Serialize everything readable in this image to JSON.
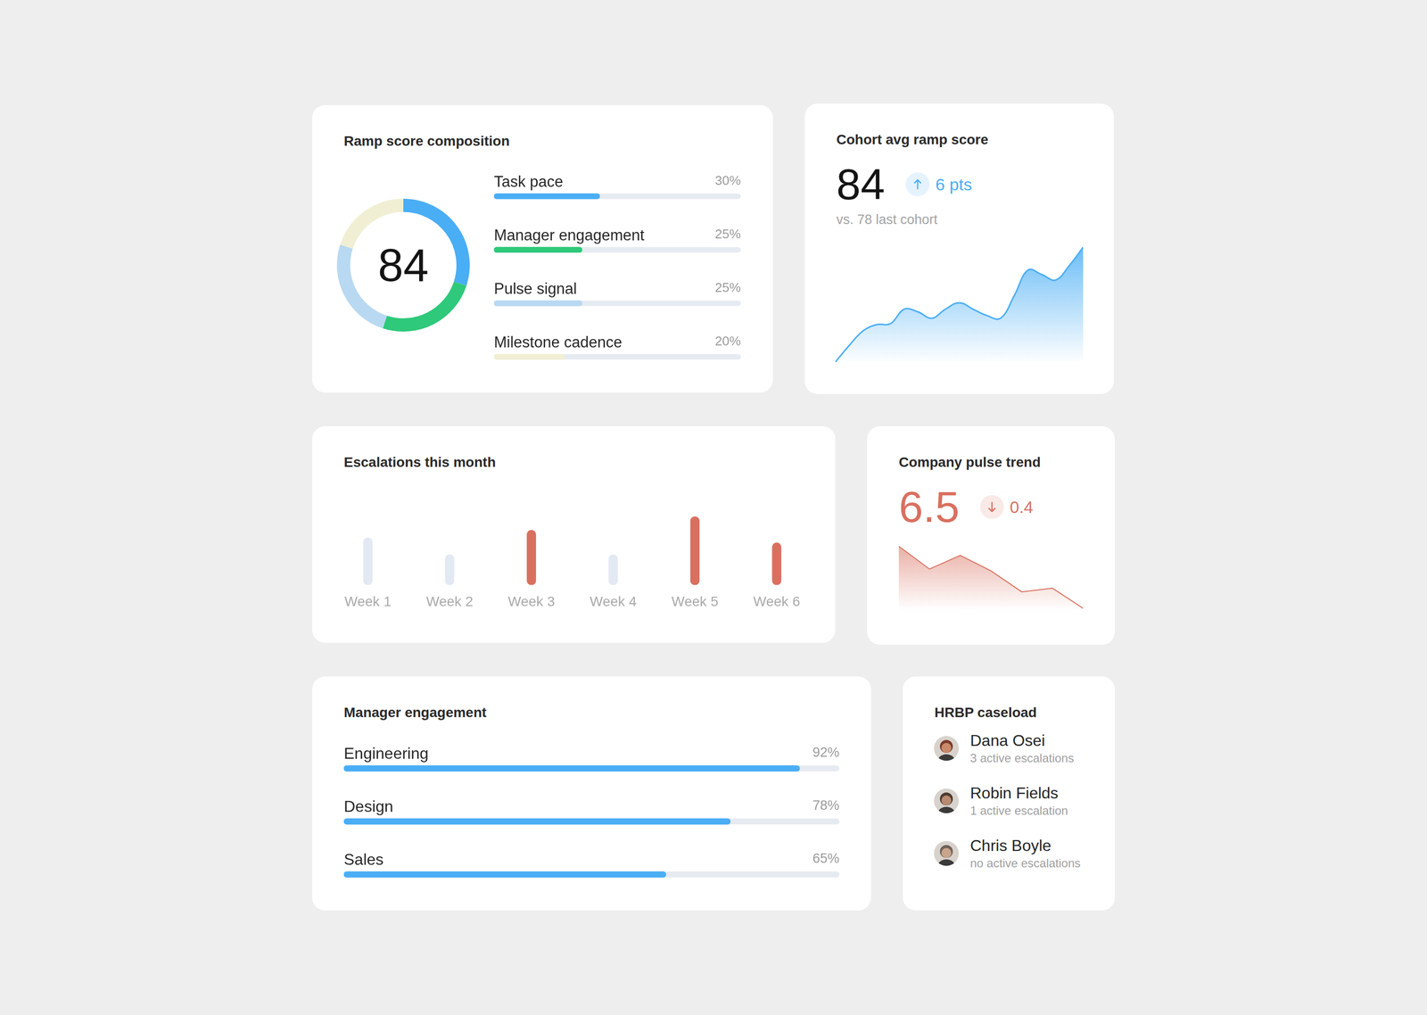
{
  "chart_data": [
    {
      "type": "doughnut",
      "title": "Ramp score composition",
      "center_value": 84,
      "categories": [
        "Task pace",
        "Manager engagement",
        "Pulse signal",
        "Milestone cadence"
      ],
      "values": [
        30,
        25,
        25,
        20
      ],
      "value_labels": [
        "30%",
        "25%",
        "25%",
        "20%"
      ],
      "data_labels": true,
      "colors": [
        "#4aaef5",
        "#2ec97a",
        "#b8d9f1",
        "#f1efd3"
      ],
      "xlim": [
        0,
        70
      ]
    },
    {
      "type": "area",
      "title": "Cohort avg ramp score",
      "kpi": 84,
      "delta": 6,
      "delta_label": "6 pts",
      "subtitle": "vs. 78 last cohort",
      "categories": [
        null,
        null,
        null,
        null,
        null,
        null,
        null,
        null,
        null,
        null,
        null,
        null,
        null,
        null,
        null,
        null,
        null,
        null,
        null
      ],
      "values": [
        2,
        20,
        36,
        43,
        44,
        60,
        57,
        50,
        60,
        67,
        60,
        53,
        50,
        75,
        103,
        98,
        92,
        108,
        128
      ],
      "color": "#4aaef5",
      "line_style": "smooth",
      "ylim": [
        0,
        135
      ],
      "tick_labels": false
    },
    {
      "type": "bar",
      "title": "Escalations this month",
      "categories": [
        "Week 1",
        "Week 2",
        "Week 3",
        "Week 4",
        "Week 5",
        "Week 6"
      ],
      "values": [
        56,
        36,
        65,
        36,
        81,
        50
      ],
      "colors": [
        "#e3e9f2",
        "#e3e9f2",
        "#d9705f",
        "#e3e9f2",
        "#d9705f",
        "#d9705f"
      ],
      "ylim": [
        0,
        100
      ],
      "tick_labels": "x",
      "grid": false
    },
    {
      "type": "area",
      "title": "Company pulse trend",
      "kpi": 6.5,
      "delta": -0.4,
      "delta_label": "0.4",
      "categories": [
        null,
        null,
        null,
        null,
        null,
        null,
        null
      ],
      "values": [
        70,
        45,
        60,
        43,
        20,
        24,
        2
      ],
      "color": "#d9705f",
      "line_style": "straight",
      "ylim": [
        0,
        75
      ],
      "tick_labels": false
    },
    {
      "type": "bar",
      "orientation": "horizontal",
      "title": "Manager engagement",
      "categories": [
        "Engineering",
        "Design",
        "Sales"
      ],
      "values": [
        92,
        78,
        65
      ],
      "value_labels": [
        "92%",
        "78%",
        "65%"
      ],
      "data_labels": true,
      "color": "#4aaef5",
      "xlim": [
        0,
        100
      ],
      "tick_labels": false
    }
  ],
  "hrbp_caseload": {
    "title": "HRBP caseload",
    "people": [
      {
        "name": "Dana Osei",
        "detail": "3 active escalations"
      },
      {
        "name": "Robin Fields",
        "detail": "1 active escalation"
      },
      {
        "name": "Chris Boyle",
        "detail": "no active escalations"
      }
    ]
  }
}
